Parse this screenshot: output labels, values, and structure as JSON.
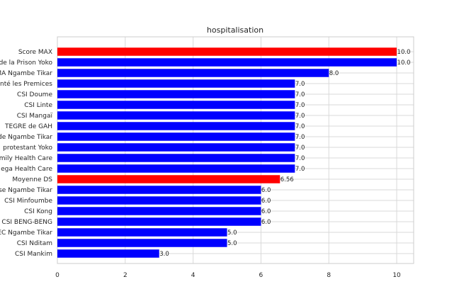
{
  "chart_data": {
    "type": "bar",
    "orientation": "horizontal",
    "title": "hospitalisation",
    "xlabel": "",
    "ylabel": "",
    "xlim": [
      0,
      10.5
    ],
    "xticks": [
      0,
      2,
      4,
      6,
      8,
      10
    ],
    "xtick_labels": [
      "0",
      "2",
      "4",
      "6",
      "8",
      "10"
    ],
    "grid": true,
    "legend": "none",
    "colors": {
      "default": "#0000ff",
      "highlight": "#ff0000",
      "grid": "#d9d9d9",
      "axes": "#cccccc"
    },
    "categories": [
      "Score MAX",
      "de la Prison Yoko",
      "MA Ngambe Tikar",
      "nté les Premices",
      "CSI Doume",
      "CSI Linte",
      "CSI Mangaï",
      "TEGRE  de GAH",
      "de Ngambe Tikar",
      "protestant Yoko",
      "mily Health Care",
      "ega Health  Care",
      "Moyenne DS",
      "se Ngambe Tikar",
      "CSI Minfoumbe",
      "CSI Kong",
      "CSI BENG-BENG",
      "EC Ngambe Tikar",
      "CSI Nditam",
      "CSI Mankim"
    ],
    "values": [
      10.0,
      10.0,
      8.0,
      7.0,
      7.0,
      7.0,
      7.0,
      7.0,
      7.0,
      7.0,
      7.0,
      7.0,
      6.56,
      6.0,
      6.0,
      6.0,
      6.0,
      5.0,
      5.0,
      3.0
    ],
    "value_labels": [
      "10.0",
      "10.0",
      "8.0",
      "7.0",
      "7.0",
      "7.0",
      "7.0",
      "7.0",
      "7.0",
      "7.0",
      "7.0",
      "7.0",
      "6.56",
      "6.0",
      "6.0",
      "6.0",
      "6.0",
      "5.0",
      "5.0",
      "3.0"
    ],
    "highlighted": [
      "Score MAX",
      "Moyenne DS"
    ]
  }
}
